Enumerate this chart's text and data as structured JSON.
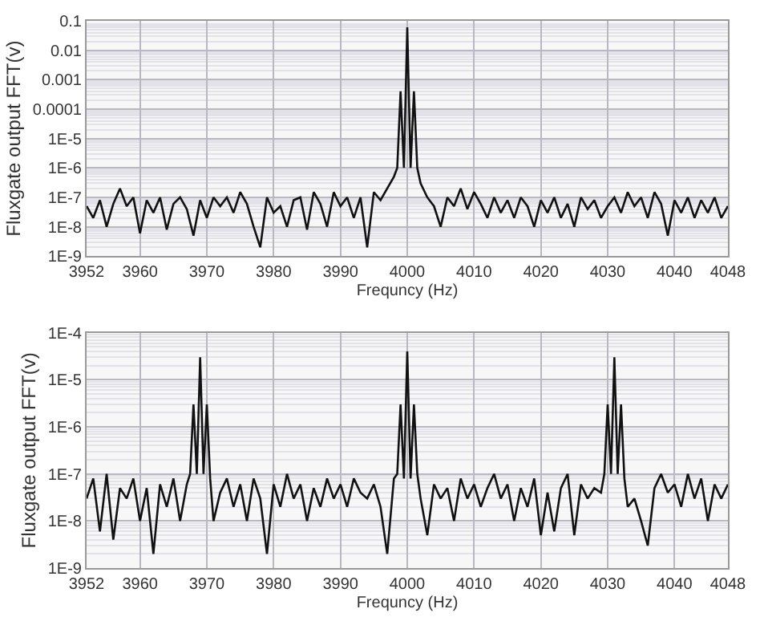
{
  "chart_data": [
    {
      "type": "line",
      "xlabel": "Frequncy (Hz)",
      "ylabel": "Fluxgate output FFT(v)",
      "log": "y",
      "grid": true,
      "marker": "none",
      "line_style": "solid",
      "xlim": [
        3952,
        4048
      ],
      "xticks": [
        3952,
        3960,
        3970,
        3980,
        3990,
        4000,
        4010,
        4020,
        4030,
        4040,
        4048
      ],
      "ylim": [
        1e-09,
        0.1
      ],
      "yticks": [
        {
          "value": 1e-09,
          "label": "1E-9"
        },
        {
          "value": 1e-08,
          "label": "1E-8"
        },
        {
          "value": 1e-07,
          "label": "1E-7"
        },
        {
          "value": 1e-06,
          "label": "1E-6"
        },
        {
          "value": 1e-05,
          "label": "1E-5"
        },
        0.0001,
        0.001,
        0.01,
        0.1
      ],
      "series": [
        {
          "color": "#111111",
          "x": [
            3952,
            3953,
            3954,
            3955,
            3956,
            3957,
            3958,
            3959,
            3960,
            3961,
            3962,
            3963,
            3964,
            3965,
            3966,
            3967,
            3968,
            3969,
            3970,
            3971,
            3972,
            3973,
            3974,
            3975,
            3976,
            3977,
            3978,
            3979,
            3980,
            3981,
            3982,
            3983,
            3984,
            3985,
            3986,
            3987,
            3988,
            3989,
            3990,
            3991,
            3992,
            3993,
            3994,
            3995,
            3996,
            3997,
            3998,
            3998.5,
            3999,
            3999.5,
            4000,
            4000.5,
            4001,
            4001.5,
            4002,
            4003,
            4004,
            4005,
            4006,
            4007,
            4008,
            4009,
            4010,
            4011,
            4012,
            4013,
            4014,
            4015,
            4016,
            4017,
            4018,
            4019,
            4020,
            4021,
            4022,
            4023,
            4024,
            4025,
            4026,
            4027,
            4028,
            4029,
            4030,
            4031,
            4032,
            4033,
            4034,
            4035,
            4036,
            4037,
            4038,
            4039,
            4040,
            4041,
            4042,
            4043,
            4044,
            4045,
            4046,
            4047,
            4048
          ],
          "values": [
            5e-08,
            2e-08,
            8e-08,
            1e-08,
            6e-08,
            2e-07,
            5e-08,
            1e-07,
            6e-09,
            8e-08,
            3e-08,
            1e-07,
            8e-09,
            6e-08,
            1e-07,
            4e-08,
            5e-09,
            8e-08,
            2e-08,
            1e-07,
            5e-08,
            1e-07,
            3e-08,
            1.5e-07,
            6e-08,
            1e-08,
            2e-09,
            1e-07,
            3e-08,
            5e-08,
            1e-08,
            8e-08,
            1e-07,
            8e-09,
            1.5e-07,
            6e-08,
            1e-08,
            1.5e-07,
            5e-08,
            1e-07,
            2e-08,
            1e-07,
            2e-09,
            1.5e-07,
            8e-08,
            2e-07,
            5e-07,
            1e-06,
            0.0004,
            1e-06,
            0.06,
            1e-06,
            0.0004,
            1e-06,
            3e-07,
            1e-07,
            5e-08,
            1e-08,
            1e-07,
            5e-08,
            2e-07,
            4e-08,
            1.5e-07,
            6e-08,
            2e-08,
            1e-07,
            3e-08,
            8e-08,
            2e-08,
            1e-07,
            5e-08,
            1e-08,
            8e-08,
            3e-08,
            1e-07,
            2e-08,
            6e-08,
            1e-08,
            1e-07,
            4e-08,
            8e-08,
            2e-08,
            5e-08,
            1e-07,
            3e-08,
            1.5e-07,
            5e-08,
            1e-07,
            2e-08,
            1.5e-07,
            6e-08,
            5e-09,
            8e-08,
            3e-08,
            1e-07,
            2e-08,
            8e-08,
            3e-08,
            1e-07,
            2e-08,
            5e-08
          ]
        }
      ]
    },
    {
      "type": "line",
      "xlabel": "Frequncy (Hz)",
      "ylabel": "Fluxgate output FFT(v)",
      "log": "y",
      "grid": true,
      "marker": "none",
      "line_style": "solid",
      "xlim": [
        3952,
        4048
      ],
      "xticks": [
        3952,
        3960,
        3970,
        3980,
        3990,
        4000,
        4010,
        4020,
        4030,
        4040,
        4048
      ],
      "ylim": [
        1e-09,
        0.0001
      ],
      "yticks": [
        {
          "value": 1e-09,
          "label": "1E-9"
        },
        {
          "value": 1e-08,
          "label": "1E-8"
        },
        {
          "value": 1e-07,
          "label": "1E-7"
        },
        {
          "value": 1e-06,
          "label": "1E-6"
        },
        {
          "value": 1e-05,
          "label": "1E-5"
        },
        {
          "value": 0.0001,
          "label": "1E-4"
        }
      ],
      "series": [
        {
          "color": "#111111",
          "x": [
            3952,
            3953,
            3954,
            3955,
            3956,
            3957,
            3958,
            3959,
            3960,
            3961,
            3962,
            3963,
            3964,
            3965,
            3966,
            3967,
            3967.5,
            3968,
            3968.5,
            3969,
            3969.5,
            3970,
            3970.5,
            3971,
            3972,
            3973,
            3974,
            3975,
            3976,
            3977,
            3978,
            3979,
            3980,
            3981,
            3982,
            3983,
            3984,
            3985,
            3986,
            3987,
            3988,
            3989,
            3990,
            3991,
            3992,
            3993,
            3994,
            3995,
            3996,
            3997,
            3998,
            3998.5,
            3999,
            3999.5,
            4000,
            4000.5,
            4001,
            4001.5,
            4002,
            4003,
            4004,
            4005,
            4006,
            4007,
            4008,
            4009,
            4010,
            4011,
            4012,
            4013,
            4014,
            4015,
            4016,
            4017,
            4018,
            4019,
            4020,
            4021,
            4022,
            4023,
            4024,
            4025,
            4026,
            4027,
            4028,
            4029,
            4029.5,
            4030,
            4030.5,
            4031,
            4031.5,
            4032,
            4032.5,
            4033,
            4034,
            4035,
            4036,
            4037,
            4038,
            4039,
            4040,
            4041,
            4042,
            4043,
            4044,
            4045,
            4046,
            4047,
            4048
          ],
          "values": [
            3e-08,
            8e-08,
            6e-09,
            1e-07,
            4e-09,
            5e-08,
            3e-08,
            8e-08,
            1e-08,
            5e-08,
            2e-09,
            6e-08,
            2e-08,
            8e-08,
            1e-08,
            6e-08,
            1e-07,
            3e-06,
            1e-07,
            3e-05,
            1e-07,
            3e-06,
            8e-08,
            1e-08,
            4e-08,
            8e-08,
            2e-08,
            6e-08,
            1e-08,
            8e-08,
            3e-08,
            2e-09,
            6e-08,
            2e-08,
            1e-07,
            3e-08,
            6e-08,
            1e-08,
            5e-08,
            2e-08,
            8e-08,
            3e-08,
            6e-08,
            2e-08,
            8e-08,
            4e-08,
            3e-08,
            6e-08,
            2e-08,
            2e-09,
            8e-08,
            1e-07,
            3e-06,
            8e-08,
            4e-05,
            8e-08,
            3e-06,
            1e-07,
            3e-08,
            5e-09,
            6e-08,
            3e-08,
            5e-08,
            1e-08,
            8e-08,
            3e-08,
            6e-08,
            2e-08,
            5e-08,
            1e-07,
            3e-08,
            6e-08,
            1e-08,
            5e-08,
            2e-08,
            8e-08,
            5e-09,
            4e-08,
            6e-09,
            5e-08,
            1e-07,
            5e-09,
            6e-08,
            3e-08,
            5e-08,
            4e-08,
            1e-07,
            3e-06,
            1e-07,
            3e-05,
            1e-07,
            3e-06,
            8e-08,
            2e-08,
            3e-08,
            1e-08,
            3e-09,
            5e-08,
            1e-07,
            4e-08,
            6e-08,
            2e-08,
            1e-07,
            3e-08,
            8e-08,
            1e-08,
            6e-08,
            3e-08,
            6e-08
          ]
        }
      ]
    }
  ]
}
